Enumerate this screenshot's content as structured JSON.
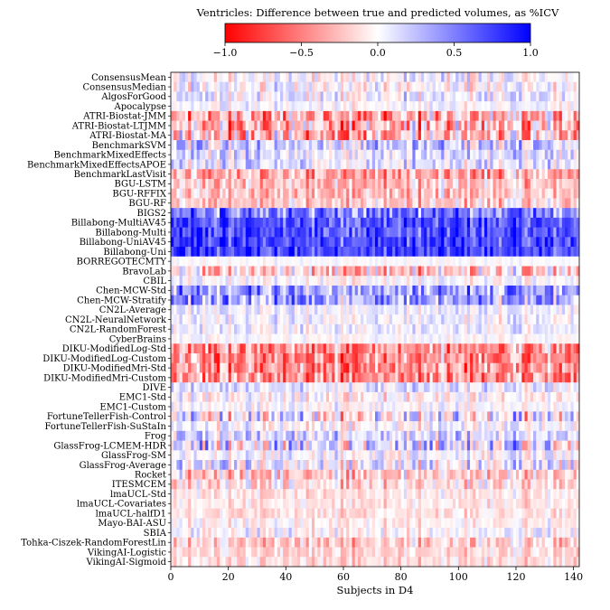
{
  "chart_data": {
    "type": "heatmap",
    "title": "Ventricles: Difference between true and predicted volumes, as %ICV",
    "xlabel": "Subjects in D4",
    "ylabel": "",
    "n_subjects": 142,
    "xlim": [
      0,
      142
    ],
    "x_ticks": [
      0,
      20,
      40,
      60,
      80,
      100,
      120,
      140
    ],
    "colorbar": {
      "range": [
        -1.0,
        1.0
      ],
      "ticks": [
        -1.0,
        -0.5,
        0.0,
        0.5,
        1.0
      ],
      "tick_labels": [
        "−1.0",
        "−0.5",
        "0.0",
        "0.5",
        "1.0"
      ],
      "colors": {
        "low": "#ff0000",
        "mid": "#ffffff",
        "high": "#0000ff"
      }
    },
    "rows": [
      {
        "name": "ConsensusMean",
        "bias": 0.0,
        "amp": 0.45
      },
      {
        "name": "ConsensusMedian",
        "bias": 0.0,
        "amp": 0.45
      },
      {
        "name": "AlgosForGood",
        "bias": 0.05,
        "amp": 0.45
      },
      {
        "name": "Apocalypse",
        "bias": 0.0,
        "amp": 0.3
      },
      {
        "name": "ATRI-Biostat-JMM",
        "bias": -0.3,
        "amp": 0.9
      },
      {
        "name": "ATRI-Biostat-LTJMM",
        "bias": -0.3,
        "amp": 0.9
      },
      {
        "name": "ATRI-Biostat-MA",
        "bias": -0.3,
        "amp": 0.9
      },
      {
        "name": "BenchmarkSVM",
        "bias": 0.2,
        "amp": 0.6
      },
      {
        "name": "BenchmarkMixedEffects",
        "bias": 0.1,
        "amp": 0.5
      },
      {
        "name": "BenchmarkMixedEffectsAPOE",
        "bias": 0.1,
        "amp": 0.5
      },
      {
        "name": "BenchmarkLastVisit",
        "bias": -0.35,
        "amp": 0.6
      },
      {
        "name": "BGU-LSTM",
        "bias": -0.25,
        "amp": 0.5
      },
      {
        "name": "BGU-RFFIX",
        "bias": -0.25,
        "amp": 0.5
      },
      {
        "name": "BGU-RF",
        "bias": -0.2,
        "amp": 0.5
      },
      {
        "name": "BIGS2",
        "bias": 0.5,
        "amp": 0.7
      },
      {
        "name": "Billabong-MultiAV45",
        "bias": 0.65,
        "amp": 0.5
      },
      {
        "name": "Billabong-Multi",
        "bias": 0.65,
        "amp": 0.5
      },
      {
        "name": "Billabong-UniAV45",
        "bias": 0.7,
        "amp": 0.5
      },
      {
        "name": "Billabong-Uni",
        "bias": 0.7,
        "amp": 0.5
      },
      {
        "name": "BORREGOTECMTY",
        "bias": 0.0,
        "amp": 0.15
      },
      {
        "name": "BravoLab",
        "bias": -0.2,
        "amp": 0.7
      },
      {
        "name": "CBIL",
        "bias": 0.0,
        "amp": 0.3
      },
      {
        "name": "Chen-MCW-Std",
        "bias": 0.35,
        "amp": 0.7
      },
      {
        "name": "Chen-MCW-Stratify",
        "bias": 0.35,
        "amp": 0.7
      },
      {
        "name": "CN2L-Average",
        "bias": 0.05,
        "amp": 0.3
      },
      {
        "name": "CN2L-NeuralNetwork",
        "bias": 0.05,
        "amp": 0.35
      },
      {
        "name": "CN2L-RandomForest",
        "bias": 0.05,
        "amp": 0.35
      },
      {
        "name": "CyberBrains",
        "bias": 0.0,
        "amp": 0.2
      },
      {
        "name": "DIKU-ModifiedLog-Std",
        "bias": -0.45,
        "amp": 0.7
      },
      {
        "name": "DIKU-ModifiedLog-Custom",
        "bias": -0.45,
        "amp": 0.7
      },
      {
        "name": "DIKU-ModifiedMri-Std",
        "bias": -0.45,
        "amp": 0.7
      },
      {
        "name": "DIKU-ModifiedMri-Custom",
        "bias": -0.45,
        "amp": 0.7
      },
      {
        "name": "DIVE",
        "bias": 0.1,
        "amp": 0.4
      },
      {
        "name": "EMC1-Std",
        "bias": -0.05,
        "amp": 0.4
      },
      {
        "name": "EMC1-Custom",
        "bias": 0.0,
        "amp": 0.3
      },
      {
        "name": "FortuneTellerFish-Control",
        "bias": 0.0,
        "amp": 0.85
      },
      {
        "name": "FortuneTellerFish-SuStaIn",
        "bias": 0.0,
        "amp": 0.4
      },
      {
        "name": "Frog",
        "bias": 0.15,
        "amp": 0.5
      },
      {
        "name": "GlassFrog-LCMEM-HDR",
        "bias": 0.1,
        "amp": 0.9
      },
      {
        "name": "GlassFrog-SM",
        "bias": 0.0,
        "amp": 0.45
      },
      {
        "name": "GlassFrog-Average",
        "bias": 0.05,
        "amp": 0.6
      },
      {
        "name": "Rocket",
        "bias": -0.2,
        "amp": 0.6
      },
      {
        "name": "ITESMCEM",
        "bias": -0.15,
        "amp": 0.5
      },
      {
        "name": "lmaUCL-Std",
        "bias": -0.1,
        "amp": 0.3
      },
      {
        "name": "lmaUCL-Covariates",
        "bias": -0.1,
        "amp": 0.3
      },
      {
        "name": "lmaUCL-halfD1",
        "bias": -0.1,
        "amp": 0.3
      },
      {
        "name": "Mayo-BAI-ASU",
        "bias": -0.05,
        "amp": 0.3
      },
      {
        "name": "SBIA",
        "bias": 0.0,
        "amp": 0.4
      },
      {
        "name": "Tohka-Ciszek-RandomForestLin",
        "bias": -0.2,
        "amp": 0.5
      },
      {
        "name": "VikingAI-Logistic",
        "bias": -0.15,
        "amp": 0.35
      },
      {
        "name": "VikingAI-Sigmoid",
        "bias": -0.15,
        "amp": 0.35
      }
    ]
  }
}
